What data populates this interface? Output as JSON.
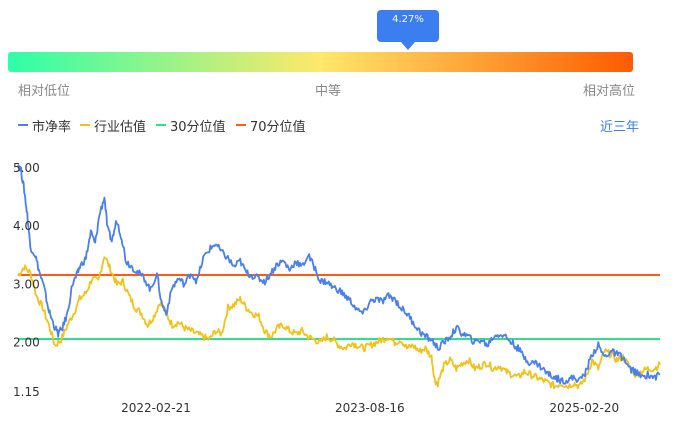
{
  "gauge": {
    "pointer_label": "4.27%",
    "pointer_fraction": 0.64,
    "left_label": "相对低位",
    "middle_label": "中等",
    "right_label": "相对高位",
    "colors": [
      "#2dffa8",
      "#ffe86a",
      "#ff5a00"
    ]
  },
  "legend": {
    "items": [
      {
        "label": "市净率",
        "color": "#4a7ff0"
      },
      {
        "label": "行业估值",
        "color": "#f2c21a"
      },
      {
        "label": "30分位值",
        "color": "#2fe08a"
      },
      {
        "label": "70分位值",
        "color": "#ff5a14"
      }
    ]
  },
  "range_link": "近三年",
  "chart_data": {
    "type": "line",
    "ylim": [
      1.15,
      5.0
    ],
    "yticks": [
      "5.00",
      "4.00",
      "3.00",
      "2.00",
      "1.15"
    ],
    "ytick_values": [
      5.0,
      4.0,
      3.0,
      2.0,
      1.15
    ],
    "xticks": [
      "2022-02-21",
      "2023-08-16",
      "2025-02-20"
    ],
    "xtick_positions": [
      0.215,
      0.548,
      0.882
    ],
    "series": [
      {
        "name": "市净率",
        "color": "#4a7ff0",
        "points": [
          [
            0.0,
            5.08
          ],
          [
            0.005,
            4.95
          ],
          [
            0.01,
            4.62
          ],
          [
            0.015,
            4.2
          ],
          [
            0.02,
            3.65
          ],
          [
            0.028,
            3.5
          ],
          [
            0.035,
            3.2
          ],
          [
            0.042,
            2.95
          ],
          [
            0.05,
            2.55
          ],
          [
            0.058,
            2.3
          ],
          [
            0.065,
            2.15
          ],
          [
            0.072,
            2.25
          ],
          [
            0.08,
            2.5
          ],
          [
            0.088,
            3.0
          ],
          [
            0.095,
            3.15
          ],
          [
            0.1,
            3.3
          ],
          [
            0.11,
            3.45
          ],
          [
            0.118,
            3.9
          ],
          [
            0.125,
            3.7
          ],
          [
            0.132,
            4.2
          ],
          [
            0.14,
            4.5
          ],
          [
            0.145,
            3.95
          ],
          [
            0.152,
            3.75
          ],
          [
            0.16,
            4.1
          ],
          [
            0.168,
            3.8
          ],
          [
            0.175,
            3.4
          ],
          [
            0.185,
            3.3
          ],
          [
            0.195,
            3.2
          ],
          [
            0.205,
            3.1
          ],
          [
            0.215,
            2.9
          ],
          [
            0.225,
            3.2
          ],
          [
            0.232,
            2.7
          ],
          [
            0.24,
            2.5
          ],
          [
            0.25,
            2.95
          ],
          [
            0.26,
            3.1
          ],
          [
            0.27,
            3.0
          ],
          [
            0.28,
            3.2
          ],
          [
            0.29,
            3.05
          ],
          [
            0.3,
            3.45
          ],
          [
            0.31,
            3.6
          ],
          [
            0.32,
            3.7
          ],
          [
            0.33,
            3.55
          ],
          [
            0.34,
            3.45
          ],
          [
            0.35,
            3.3
          ],
          [
            0.36,
            3.4
          ],
          [
            0.37,
            3.2
          ],
          [
            0.38,
            3.15
          ],
          [
            0.39,
            3.1
          ],
          [
            0.4,
            3.05
          ],
          [
            0.41,
            3.2
          ],
          [
            0.42,
            3.35
          ],
          [
            0.43,
            3.4
          ],
          [
            0.44,
            3.25
          ],
          [
            0.45,
            3.4
          ],
          [
            0.46,
            3.3
          ],
          [
            0.47,
            3.5
          ],
          [
            0.48,
            3.3
          ],
          [
            0.49,
            3.05
          ],
          [
            0.5,
            3.05
          ],
          [
            0.51,
            2.95
          ],
          [
            0.52,
            2.9
          ],
          [
            0.53,
            2.8
          ],
          [
            0.54,
            2.7
          ],
          [
            0.55,
            2.55
          ],
          [
            0.56,
            2.5
          ],
          [
            0.57,
            2.7
          ],
          [
            0.58,
            2.75
          ],
          [
            0.59,
            2.7
          ],
          [
            0.6,
            2.8
          ],
          [
            0.61,
            2.75
          ],
          [
            0.62,
            2.6
          ],
          [
            0.63,
            2.5
          ],
          [
            0.64,
            2.35
          ],
          [
            0.65,
            2.2
          ],
          [
            0.66,
            2.1
          ],
          [
            0.67,
            2.05
          ],
          [
            0.68,
            1.9
          ],
          [
            0.69,
            2.0
          ],
          [
            0.7,
            2.1
          ],
          [
            0.71,
            2.25
          ],
          [
            0.72,
            2.15
          ],
          [
            0.73,
            2.1
          ],
          [
            0.74,
            2.0
          ],
          [
            0.75,
            2.05
          ],
          [
            0.76,
            1.95
          ],
          [
            0.77,
            2.1
          ],
          [
            0.78,
            2.15
          ],
          [
            0.79,
            2.1
          ],
          [
            0.8,
            2.0
          ],
          [
            0.81,
            1.9
          ],
          [
            0.82,
            1.75
          ],
          [
            0.83,
            1.65
          ],
          [
            0.84,
            1.65
          ],
          [
            0.85,
            1.55
          ],
          [
            0.86,
            1.45
          ],
          [
            0.87,
            1.4
          ],
          [
            0.88,
            1.35
          ],
          [
            0.89,
            1.35
          ],
          [
            0.9,
            1.4
          ],
          [
            0.91,
            1.35
          ],
          [
            0.92,
            1.5
          ],
          [
            0.93,
            1.8
          ],
          [
            0.94,
            1.95
          ],
          [
            0.95,
            1.75
          ],
          [
            0.96,
            1.85
          ],
          [
            0.97,
            1.8
          ],
          [
            0.98,
            1.75
          ],
          [
            0.99,
            1.55
          ],
          [
            1.0,
            1.5
          ],
          [
            1.01,
            1.4
          ],
          [
            1.02,
            1.45
          ],
          [
            1.03,
            1.4
          ],
          [
            1.04,
            1.45
          ]
        ]
      },
      {
        "name": "行业估值",
        "color": "#f2c21a",
        "points": [
          [
            0.0,
            3.15
          ],
          [
            0.01,
            3.3
          ],
          [
            0.02,
            3.2
          ],
          [
            0.03,
            2.8
          ],
          [
            0.04,
            2.6
          ],
          [
            0.05,
            2.3
          ],
          [
            0.06,
            1.95
          ],
          [
            0.07,
            2.05
          ],
          [
            0.08,
            2.3
          ],
          [
            0.09,
            2.5
          ],
          [
            0.1,
            2.75
          ],
          [
            0.11,
            2.85
          ],
          [
            0.12,
            3.1
          ],
          [
            0.13,
            3.05
          ],
          [
            0.14,
            3.5
          ],
          [
            0.15,
            3.25
          ],
          [
            0.16,
            3.0
          ],
          [
            0.17,
            3.05
          ],
          [
            0.18,
            2.8
          ],
          [
            0.19,
            2.6
          ],
          [
            0.2,
            2.5
          ],
          [
            0.21,
            2.3
          ],
          [
            0.22,
            2.45
          ],
          [
            0.23,
            2.7
          ],
          [
            0.24,
            2.5
          ],
          [
            0.25,
            2.3
          ],
          [
            0.26,
            2.35
          ],
          [
            0.27,
            2.25
          ],
          [
            0.28,
            2.2
          ],
          [
            0.29,
            2.15
          ],
          [
            0.3,
            2.1
          ],
          [
            0.31,
            2.05
          ],
          [
            0.32,
            2.2
          ],
          [
            0.33,
            2.15
          ],
          [
            0.34,
            2.6
          ],
          [
            0.35,
            2.65
          ],
          [
            0.36,
            2.75
          ],
          [
            0.37,
            2.6
          ],
          [
            0.38,
            2.5
          ],
          [
            0.39,
            2.45
          ],
          [
            0.4,
            2.2
          ],
          [
            0.41,
            2.1
          ],
          [
            0.42,
            2.25
          ],
          [
            0.43,
            2.3
          ],
          [
            0.44,
            2.2
          ],
          [
            0.45,
            2.15
          ],
          [
            0.46,
            2.2
          ],
          [
            0.47,
            2.1
          ],
          [
            0.48,
            2.05
          ],
          [
            0.49,
            2.0
          ],
          [
            0.5,
            2.1
          ],
          [
            0.51,
            2.05
          ],
          [
            0.52,
            1.95
          ],
          [
            0.53,
            1.9
          ],
          [
            0.54,
            2.0
          ],
          [
            0.55,
            1.95
          ],
          [
            0.56,
            1.9
          ],
          [
            0.57,
            1.95
          ],
          [
            0.58,
            2.0
          ],
          [
            0.59,
            2.05
          ],
          [
            0.6,
            2.1
          ],
          [
            0.61,
            2.0
          ],
          [
            0.62,
            2.05
          ],
          [
            0.63,
            1.9
          ],
          [
            0.64,
            1.95
          ],
          [
            0.65,
            1.85
          ],
          [
            0.66,
            1.9
          ],
          [
            0.67,
            1.75
          ],
          [
            0.675,
            1.35
          ],
          [
            0.68,
            1.3
          ],
          [
            0.69,
            1.6
          ],
          [
            0.7,
            1.7
          ],
          [
            0.71,
            1.55
          ],
          [
            0.72,
            1.65
          ],
          [
            0.73,
            1.7
          ],
          [
            0.74,
            1.55
          ],
          [
            0.75,
            1.6
          ],
          [
            0.76,
            1.65
          ],
          [
            0.77,
            1.55
          ],
          [
            0.78,
            1.6
          ],
          [
            0.79,
            1.5
          ],
          [
            0.8,
            1.45
          ],
          [
            0.81,
            1.4
          ],
          [
            0.82,
            1.5
          ],
          [
            0.83,
            1.45
          ],
          [
            0.84,
            1.4
          ],
          [
            0.85,
            1.35
          ],
          [
            0.86,
            1.3
          ],
          [
            0.87,
            1.25
          ],
          [
            0.88,
            1.3
          ],
          [
            0.89,
            1.25
          ],
          [
            0.9,
            1.3
          ],
          [
            0.91,
            1.25
          ],
          [
            0.92,
            1.4
          ],
          [
            0.93,
            1.7
          ],
          [
            0.94,
            1.55
          ],
          [
            0.95,
            1.85
          ],
          [
            0.96,
            1.8
          ],
          [
            0.97,
            1.7
          ],
          [
            0.98,
            1.75
          ],
          [
            0.99,
            1.6
          ],
          [
            1.0,
            1.45
          ],
          [
            1.01,
            1.5
          ],
          [
            1.02,
            1.55
          ],
          [
            1.03,
            1.55
          ],
          [
            1.04,
            1.62
          ]
        ]
      }
    ],
    "reference_lines": [
      {
        "name": "30分位值",
        "value": 2.06,
        "color": "#2fe08a"
      },
      {
        "name": "70分位值",
        "value": 3.16,
        "color": "#ff5a14"
      }
    ]
  }
}
